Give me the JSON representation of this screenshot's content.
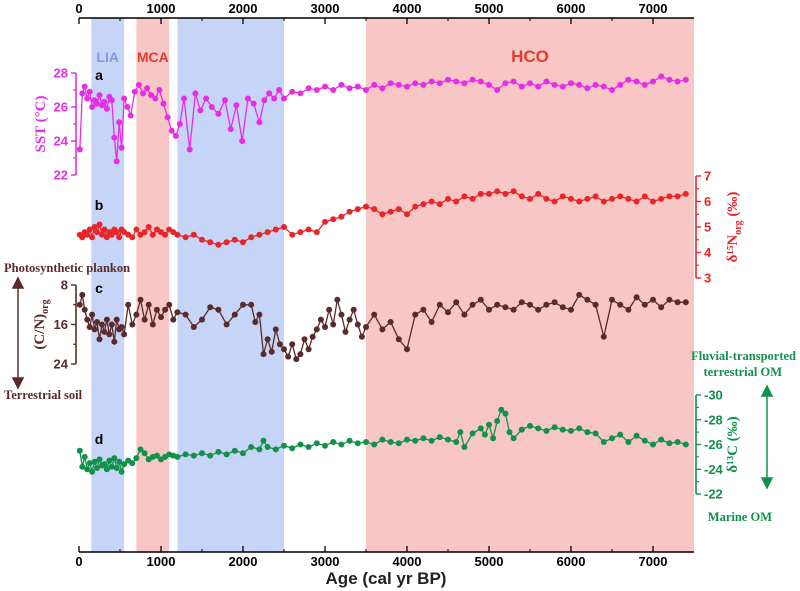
{
  "chart_data": {
    "type": "line",
    "xlabel": "Age (cal yr BP)",
    "x_range": [
      0,
      7500
    ],
    "x_ticks": [
      "0",
      "1000",
      "2000",
      "3000",
      "4000",
      "5000",
      "6000",
      "7000"
    ],
    "bands": [
      {
        "label": "LIA",
        "from": 150,
        "to": 550,
        "color": "#c6d4f7",
        "label_color": "#7f9be0"
      },
      {
        "label": "MCA",
        "from": 700,
        "to": 1100,
        "color": "#f8c6c4",
        "label_color": "#e23b2e"
      },
      {
        "label": "",
        "from": 1200,
        "to": 2500,
        "color": "#c6d4f7",
        "label_color": "#7f9be0"
      },
      {
        "label": "HCO",
        "from": 3500,
        "to": 7500,
        "color": "#f8c6c4",
        "label_color": "#e23b2e"
      }
    ],
    "series": [
      {
        "name": "SST",
        "panel": "a",
        "ylabel": "SST (°C)",
        "color": "#e62ee6",
        "ylim": [
          22,
          28
        ],
        "yticks": [
          "28",
          "26",
          "24",
          "22"
        ],
        "x": [
          10,
          40,
          70,
          100,
          130,
          160,
          190,
          220,
          250,
          280,
          310,
          340,
          370,
          400,
          430,
          460,
          490,
          520,
          550,
          590,
          630,
          680,
          730,
          780,
          830,
          880,
          930,
          980,
          1030,
          1080,
          1130,
          1180,
          1230,
          1280,
          1350,
          1420,
          1480,
          1550,
          1620,
          1700,
          1780,
          1850,
          1920,
          1990,
          2060,
          2130,
          2200,
          2260,
          2320,
          2380,
          2440,
          2500,
          2600,
          2700,
          2800,
          2900,
          3000,
          3100,
          3200,
          3300,
          3400,
          3500,
          3600,
          3700,
          3800,
          3900,
          4000,
          4100,
          4200,
          4300,
          4400,
          4500,
          4600,
          4700,
          4800,
          4900,
          5000,
          5100,
          5200,
          5300,
          5400,
          5500,
          5600,
          5700,
          5800,
          5900,
          6000,
          6100,
          6200,
          6300,
          6400,
          6500,
          6600,
          6700,
          6800,
          6900,
          7000,
          7100,
          7200,
          7300,
          7400
        ],
        "values": [
          23.5,
          26.8,
          27.2,
          26.5,
          26.9,
          26.0,
          26.4,
          26.2,
          26.7,
          26.1,
          26.3,
          25.9,
          26.6,
          26.4,
          24.2,
          22.8,
          25.1,
          23.6,
          26.5,
          26.0,
          25.5,
          26.9,
          27.3,
          26.8,
          27.1,
          26.7,
          26.5,
          27.0,
          26.2,
          25.4,
          24.6,
          24.3,
          25.0,
          26.5,
          23.5,
          26.8,
          25.8,
          26.5,
          26.0,
          25.6,
          26.4,
          24.7,
          26.1,
          24.0,
          26.5,
          26.2,
          25.1,
          26.4,
          26.8,
          26.5,
          27.0,
          26.5,
          26.9,
          26.8,
          27.1,
          27.0,
          27.2,
          27.0,
          27.3,
          27.1,
          27.2,
          27.0,
          27.3,
          27.1,
          27.4,
          27.3,
          27.2,
          27.4,
          27.3,
          27.5,
          27.4,
          27.6,
          27.5,
          27.4,
          27.6,
          27.5,
          27.3,
          27.0,
          27.4,
          27.5,
          27.2,
          27.4,
          27.2,
          27.5,
          27.3,
          27.2,
          27.4,
          27.3,
          27.1,
          27.3,
          27.2,
          27.0,
          27.3,
          27.6,
          27.5,
          27.3,
          27.5,
          27.8,
          27.6,
          27.5,
          27.6
        ]
      },
      {
        "name": "δ15Norg",
        "panel": "b",
        "ylabel": "δ¹⁵N",
        "ylabel_sub": "org",
        "ylabel_unit": " (‰)",
        "color": "#e8262a",
        "ylim": [
          3,
          7
        ],
        "yticks": [
          "7",
          "6",
          "5",
          "4",
          "3"
        ],
        "x": [
          10,
          40,
          70,
          100,
          130,
          160,
          190,
          220,
          250,
          280,
          310,
          340,
          370,
          400,
          430,
          460,
          490,
          520,
          550,
          600,
          650,
          700,
          750,
          800,
          850,
          900,
          950,
          1000,
          1050,
          1100,
          1150,
          1200,
          1300,
          1400,
          1500,
          1600,
          1700,
          1800,
          1900,
          2000,
          2100,
          2200,
          2300,
          2400,
          2500,
          2600,
          2700,
          2800,
          2900,
          3000,
          3100,
          3200,
          3300,
          3400,
          3500,
          3600,
          3700,
          3800,
          3900,
          4000,
          4100,
          4200,
          4300,
          4400,
          4500,
          4600,
          4700,
          4800,
          4900,
          5000,
          5100,
          5200,
          5300,
          5400,
          5500,
          5600,
          5700,
          5800,
          5900,
          6000,
          6100,
          6200,
          6300,
          6400,
          6500,
          6600,
          6700,
          6800,
          6900,
          7000,
          7100,
          7200,
          7300,
          7400
        ],
        "values": [
          4.7,
          4.6,
          4.8,
          4.7,
          4.9,
          4.6,
          5.0,
          4.8,
          5.1,
          4.7,
          4.9,
          4.6,
          4.8,
          4.7,
          4.9,
          4.8,
          4.6,
          4.9,
          4.8,
          4.7,
          4.6,
          4.9,
          4.7,
          4.8,
          5.0,
          4.7,
          4.9,
          4.8,
          4.7,
          4.9,
          4.8,
          4.7,
          4.6,
          4.7,
          4.5,
          4.4,
          4.3,
          4.4,
          4.5,
          4.4,
          4.6,
          4.7,
          4.8,
          4.9,
          5.0,
          4.7,
          4.8,
          4.9,
          4.8,
          5.2,
          5.3,
          5.4,
          5.6,
          5.7,
          5.8,
          5.7,
          5.5,
          5.6,
          5.7,
          5.5,
          5.8,
          5.9,
          6.0,
          5.9,
          6.1,
          6.0,
          6.2,
          6.1,
          6.3,
          6.3,
          6.4,
          6.3,
          6.4,
          6.2,
          6.1,
          6.3,
          6.1,
          6.0,
          6.2,
          6.1,
          6.0,
          6.1,
          6.2,
          6.0,
          6.1,
          6.2,
          6.1,
          6.0,
          6.2,
          6.0,
          6.1,
          6.2,
          6.2,
          6.3
        ]
      },
      {
        "name": "C/N org",
        "panel": "c",
        "ylabel": "(C/N)",
        "ylabel_sub": "org",
        "color": "#5b2a2a",
        "ylim": [
          8,
          24
        ],
        "reversed": true,
        "yticks": [
          "8",
          "16",
          "24"
        ],
        "x": [
          10,
          40,
          70,
          100,
          130,
          160,
          190,
          220,
          250,
          280,
          310,
          340,
          370,
          400,
          430,
          460,
          490,
          520,
          550,
          600,
          650,
          700,
          750,
          800,
          850,
          900,
          950,
          1000,
          1050,
          1100,
          1150,
          1200,
          1300,
          1400,
          1500,
          1600,
          1700,
          1800,
          1900,
          2000,
          2100,
          2150,
          2200,
          2250,
          2300,
          2350,
          2400,
          2450,
          2500,
          2550,
          2600,
          2650,
          2700,
          2750,
          2800,
          2850,
          2900,
          2950,
          3000,
          3050,
          3100,
          3150,
          3200,
          3250,
          3300,
          3350,
          3400,
          3450,
          3500,
          3600,
          3700,
          3800,
          3900,
          4000,
          4100,
          4200,
          4300,
          4400,
          4500,
          4600,
          4700,
          4800,
          4900,
          5000,
          5100,
          5200,
          5300,
          5400,
          5500,
          5600,
          5700,
          5800,
          5900,
          6000,
          6100,
          6200,
          6300,
          6400,
          6500,
          6600,
          6700,
          6800,
          6900,
          7000,
          7100,
          7200,
          7300,
          7400
        ],
        "values": [
          12.0,
          10.0,
          13.0,
          15.0,
          16.5,
          14.0,
          17.0,
          15.5,
          19.0,
          16.0,
          17.5,
          15.0,
          18.0,
          16.0,
          19.5,
          15.0,
          17.0,
          16.5,
          18.0,
          12.0,
          16.0,
          14.0,
          11.0,
          15.0,
          12.0,
          16.0,
          13.0,
          14.5,
          13.0,
          12.0,
          15.0,
          13.5,
          14.0,
          16.5,
          15.0,
          12.5,
          13.0,
          16.0,
          14.0,
          12.0,
          12.0,
          15.5,
          14.0,
          22.0,
          19.0,
          21.5,
          17.0,
          20.0,
          21.0,
          22.5,
          20.0,
          23.0,
          22.0,
          19.0,
          21.0,
          18.5,
          17.0,
          15.0,
          16.5,
          13.0,
          16.0,
          11.0,
          14.0,
          17.5,
          15.0,
          13.0,
          16.0,
          18.5,
          16.5,
          14.0,
          17.0,
          15.5,
          19.0,
          21.0,
          14.0,
          13.0,
          15.5,
          12.0,
          13.5,
          11.5,
          14.0,
          12.0,
          11.0,
          13.0,
          12.0,
          12.5,
          13.0,
          11.5,
          12.0,
          13.0,
          12.0,
          11.5,
          12.5,
          13.0,
          10.0,
          11.0,
          12.0,
          18.5,
          11.0,
          12.0,
          13.0,
          10.5,
          12.0,
          11.0,
          12.5,
          11.0,
          11.5,
          11.5
        ]
      },
      {
        "name": "δ13C",
        "panel": "d",
        "ylabel": "δ¹³C (‰)",
        "color": "#12914b",
        "ylim": [
          -30,
          -22
        ],
        "reversed": true,
        "yticks": [
          "-30",
          "-28",
          "-26",
          "-24",
          "-22"
        ],
        "x": [
          10,
          40,
          70,
          100,
          130,
          160,
          190,
          220,
          250,
          280,
          310,
          340,
          370,
          400,
          430,
          460,
          490,
          520,
          550,
          600,
          650,
          700,
          750,
          800,
          850,
          900,
          950,
          1000,
          1050,
          1100,
          1150,
          1200,
          1300,
          1400,
          1500,
          1600,
          1700,
          1800,
          1900,
          2000,
          2100,
          2200,
          2250,
          2300,
          2400,
          2500,
          2600,
          2700,
          2800,
          2900,
          3000,
          3100,
          3200,
          3300,
          3400,
          3500,
          3600,
          3700,
          3800,
          3900,
          4000,
          4100,
          4200,
          4300,
          4400,
          4500,
          4600,
          4650,
          4700,
          4800,
          4900,
          4950,
          5000,
          5050,
          5100,
          5150,
          5200,
          5250,
          5300,
          5400,
          5500,
          5600,
          5700,
          5800,
          5900,
          6000,
          6100,
          6200,
          6300,
          6400,
          6500,
          6600,
          6700,
          6800,
          6900,
          7000,
          7100,
          7200,
          7300,
          7400
        ],
        "values": [
          -25.5,
          -24.2,
          -25.0,
          -24.0,
          -24.5,
          -23.8,
          -24.6,
          -24.1,
          -24.8,
          -24.3,
          -24.4,
          -24.0,
          -24.7,
          -24.2,
          -24.9,
          -24.1,
          -24.6,
          -23.8,
          -24.4,
          -24.7,
          -24.5,
          -24.9,
          -25.6,
          -25.3,
          -24.8,
          -25.0,
          -25.1,
          -24.8,
          -25.0,
          -25.2,
          -25.1,
          -25.0,
          -25.2,
          -25.1,
          -25.3,
          -25.1,
          -25.4,
          -25.2,
          -25.5,
          -25.3,
          -25.8,
          -25.6,
          -26.3,
          -25.8,
          -25.6,
          -25.9,
          -25.7,
          -26.0,
          -25.8,
          -26.1,
          -25.9,
          -26.2,
          -26.0,
          -26.3,
          -26.1,
          -26.2,
          -26.0,
          -26.4,
          -26.2,
          -26.1,
          -26.4,
          -26.3,
          -26.5,
          -26.3,
          -26.6,
          -26.4,
          -26.2,
          -27.0,
          -25.8,
          -26.9,
          -27.3,
          -26.8,
          -27.6,
          -26.5,
          -27.9,
          -28.8,
          -28.5,
          -27.0,
          -26.5,
          -27.2,
          -27.5,
          -27.3,
          -27.1,
          -27.4,
          -27.2,
          -27.1,
          -27.3,
          -27.0,
          -26.9,
          -26.2,
          -26.5,
          -26.8,
          -26.2,
          -26.7,
          -26.3,
          -26.0,
          -26.4,
          -26.1,
          -26.2,
          -26.0
        ]
      }
    ],
    "annotations": {
      "photosynthetic": "Photosynthetic plankon",
      "terrestrial_soil": "Terrestrial soil",
      "fluvial_line1": "Fluvial-transported",
      "fluvial_line2": "terrestrial OM",
      "marine": "Marine OM"
    }
  }
}
